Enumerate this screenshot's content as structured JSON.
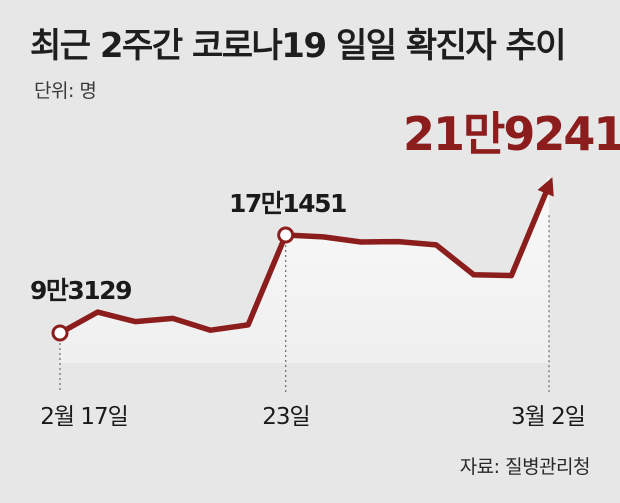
{
  "title": "최근 2주간 코로나19 일일 확진자 추이",
  "unit_label": "단위: 명",
  "source": "자료: 질병관리청",
  "colors": {
    "line": "#8c1d1d",
    "background": "#e7e7e8",
    "area": "#f7f7f8",
    "text": "#1e1e1e"
  },
  "chart_data": {
    "type": "line",
    "title": "최근 2주간 코로나19 일일 확진자 추이",
    "unit": "명",
    "x_tick_labels": [
      "2월 17일",
      "23일",
      "3월 2일"
    ],
    "series": [
      {
        "values": [
          93129,
          109822,
          102208,
          104828,
          95362,
          99573,
          171451,
          169970,
          165890,
          166206,
          163566,
          139626,
          138993,
          219241
        ]
      }
    ],
    "annotations": [
      {
        "index": 0,
        "text": "9만3129"
      },
      {
        "index": 6,
        "text": "17만1451"
      },
      {
        "index": 13,
        "text": "21만9241"
      }
    ],
    "ylim": [
      50000,
      250000
    ]
  }
}
